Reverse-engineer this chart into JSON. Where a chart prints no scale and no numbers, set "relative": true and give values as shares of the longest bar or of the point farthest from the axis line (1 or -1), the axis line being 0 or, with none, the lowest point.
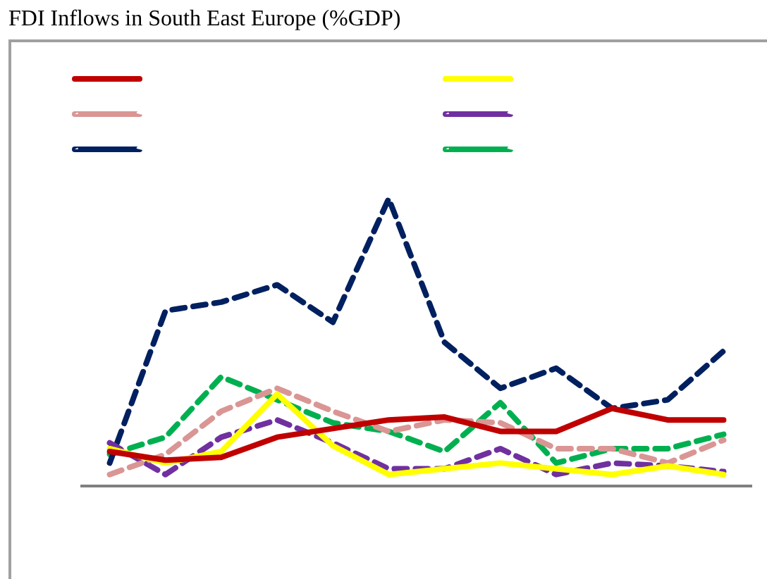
{
  "chart_data": {
    "type": "line",
    "title": "FDI Inflows in South East Europe (%GDP)",
    "relative": true,
    "categories": [
      null,
      null,
      null,
      null,
      null,
      null,
      null,
      null,
      null,
      null,
      null,
      null
    ],
    "series": [
      {
        "color": "#c00000",
        "line_style": "solid",
        "values": [
          0.12,
          0.09,
          0.1,
          0.17,
          0.2,
          0.23,
          0.24,
          0.19,
          0.19,
          0.27,
          0.23,
          0.23
        ]
      },
      {
        "color": "#ffff00",
        "line_style": "solid",
        "values": [
          0.13,
          0.08,
          0.12,
          0.32,
          0.14,
          0.04,
          0.06,
          0.08,
          0.06,
          0.04,
          0.07,
          0.04
        ]
      },
      {
        "color": "#d99694",
        "line_style": "dashed",
        "values": [
          0.04,
          0.11,
          0.26,
          0.34,
          0.26,
          0.19,
          0.23,
          0.22,
          0.13,
          0.13,
          0.08,
          0.16
        ]
      },
      {
        "color": "#7030a0",
        "line_style": "dashed",
        "values": [
          0.15,
          0.04,
          0.17,
          0.23,
          0.15,
          0.06,
          0.06,
          0.13,
          0.04,
          0.08,
          0.07,
          0.05
        ]
      },
      {
        "color": "#002060",
        "line_style": "dashed",
        "values": [
          0.08,
          0.61,
          0.64,
          0.7,
          0.57,
          1,
          0.5,
          0.34,
          0.41,
          0.27,
          0.3,
          0.47
        ]
      },
      {
        "color": "#00b050",
        "line_style": "dashed",
        "values": [
          0.11,
          0.17,
          0.38,
          0.3,
          0.22,
          0.19,
          0.12,
          0.29,
          0.08,
          0.13,
          0.13,
          0.18
        ]
      }
    ]
  }
}
